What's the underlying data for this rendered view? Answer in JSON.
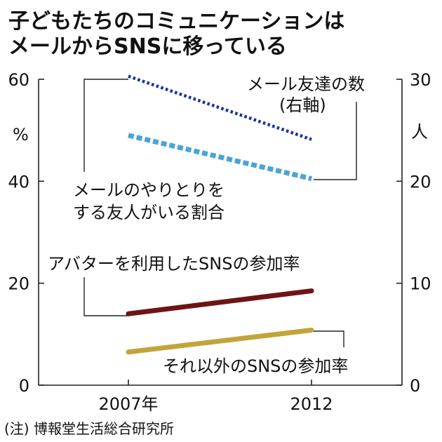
{
  "title_line1": "子どもたちのコミュニケーションは",
  "title_line2": "メールからSNSに移っている",
  "source_note": "(注) 博報堂生活総合研究所",
  "colors": {
    "mail_friends": "#1f2fa0",
    "mail_share": "#4aa3d6",
    "avatar_sns": "#6e1414",
    "other_sns": "#c2a53a"
  },
  "chart_data": {
    "type": "line",
    "x": [
      "2007年",
      "2012"
    ],
    "left_axis": {
      "unit": "%",
      "ylim": [
        0,
        60
      ],
      "ticks": [
        0,
        20,
        40,
        60
      ]
    },
    "right_axis": {
      "unit": "人",
      "ylim": [
        0,
        30
      ],
      "ticks": [
        0,
        10,
        20,
        30
      ]
    },
    "series": [
      {
        "name": "メール友達の数",
        "name_sub": "(右軸)",
        "axis": "right",
        "values": [
          30.3,
          24.1
        ],
        "style": "dotted",
        "color_key": "mail_friends"
      },
      {
        "name": "メールのやりとりを",
        "name_line2": "する友人がいる割合",
        "axis": "left",
        "values": [
          49,
          40.5
        ],
        "style": "dashed",
        "color_key": "mail_share"
      },
      {
        "name": "アバターを利用したSNSの参加率",
        "axis": "left",
        "values": [
          14,
          18.5
        ],
        "style": "solid",
        "color_key": "avatar_sns"
      },
      {
        "name": "それ以外のSNSの参加率",
        "axis": "left",
        "values": [
          6.5,
          10.8
        ],
        "style": "solid",
        "color_key": "other_sns"
      }
    ]
  }
}
